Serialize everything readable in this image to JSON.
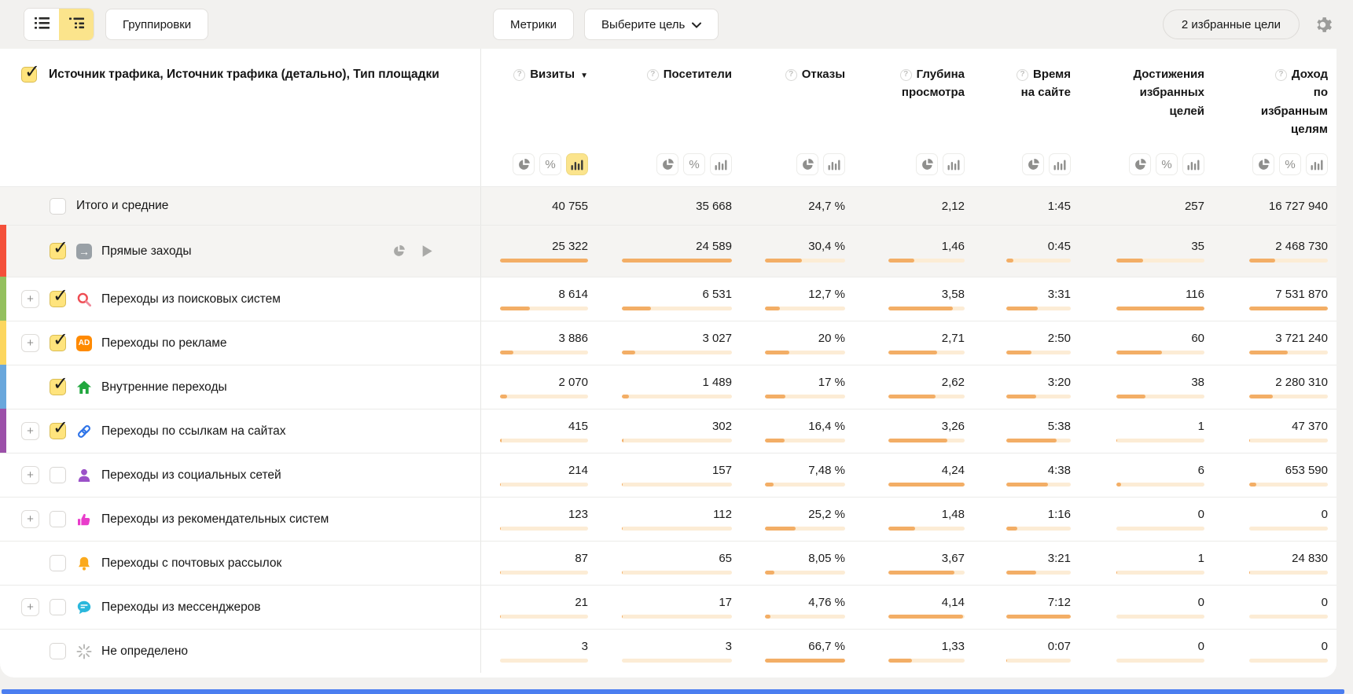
{
  "toolbar": {
    "groupings": "Группировки",
    "metrics": "Метрики",
    "goal_select": "Выберите цель",
    "favorite_goals": "2 избранные цели",
    "icons": [
      "list-view-icon",
      "tree-view-icon",
      "chevron-down-icon",
      "gear-icon"
    ]
  },
  "table": {
    "dimension_header": "Источник трафика, Источник трафика (детально), Тип площадки",
    "columns": [
      {
        "id": "visits",
        "label": "Визиты",
        "help": true,
        "sort": "desc",
        "toggles": [
          "pie-chart-icon",
          "percent-icon",
          "bar-chart-icon"
        ],
        "active": "bar-chart-icon"
      },
      {
        "id": "visitors",
        "label": "Посетители",
        "help": true,
        "sort": null,
        "toggles": [
          "pie-chart-icon",
          "percent-icon",
          "bar-chart-icon"
        ],
        "active": null
      },
      {
        "id": "bounce",
        "label": "Отказы",
        "help": true,
        "sort": null,
        "toggles": [
          "pie-chart-icon",
          "bar-chart-icon"
        ],
        "active": null
      },
      {
        "id": "depth",
        "label": "Глубина\nпросмотра",
        "help": true,
        "sort": null,
        "toggles": [
          "pie-chart-icon",
          "bar-chart-icon"
        ],
        "active": null
      },
      {
        "id": "time",
        "label": "Время\nна сайте",
        "help": true,
        "sort": null,
        "toggles": [
          "pie-chart-icon",
          "bar-chart-icon"
        ],
        "active": null
      },
      {
        "id": "goals",
        "label": "Достижения\nизбранных\nцелей",
        "help": false,
        "sort": null,
        "toggles": [
          "pie-chart-icon",
          "percent-icon",
          "bar-chart-icon"
        ],
        "active": null
      },
      {
        "id": "revenue",
        "label": "Доход\nпо\nизбранным\nцелям",
        "help": true,
        "sort": null,
        "toggles": [
          "pie-chart-icon",
          "percent-icon",
          "bar-chart-icon"
        ],
        "active": null
      }
    ],
    "rows": [
      {
        "id": "totals",
        "label": "Итого и средние",
        "total": true,
        "checked": false,
        "expander": false,
        "icon": null,
        "stripe": null,
        "values": [
          "40 755",
          "35 668",
          "24,7 %",
          "2,12",
          "1:45",
          "257",
          "16 727 940"
        ],
        "bars": null
      },
      {
        "id": "direct",
        "label": "Прямые заходы",
        "total": false,
        "checked": true,
        "expander": false,
        "icon": "direct-traffic-icon",
        "stripe": "#f4503a",
        "highlight": true,
        "actions": [
          "pie-chart-icon",
          "play-icon"
        ],
        "values": [
          "25 322",
          "24 589",
          "30,4 %",
          "1,46",
          "0:45",
          "35",
          "2 468 730"
        ],
        "bars": [
          100,
          100,
          45.6,
          34.4,
          10.4,
          30.2,
          32.8
        ]
      },
      {
        "id": "search",
        "label": "Переходы из поисковых систем",
        "total": false,
        "checked": true,
        "expander": true,
        "icon": "search-icon",
        "stripe": "#94c05e",
        "values": [
          "8 614",
          "6 531",
          "12,7 %",
          "3,58",
          "3:31",
          "116",
          "7 531 870"
        ],
        "bars": [
          34,
          26.6,
          19,
          84.4,
          48.8,
          100,
          100
        ]
      },
      {
        "id": "ads",
        "label": "Переходы по рекламе",
        "total": false,
        "checked": true,
        "expander": true,
        "icon": "ad-icon",
        "stripe": "#fcd65e",
        "values": [
          "3 886",
          "3 027",
          "20 %",
          "2,71",
          "2:50",
          "60",
          "3 721 240"
        ],
        "bars": [
          15.3,
          12.3,
          30,
          63.9,
          39.4,
          51.7,
          49.4
        ]
      },
      {
        "id": "internal",
        "label": "Внутренние переходы",
        "total": false,
        "checked": true,
        "expander": false,
        "icon": "home-icon",
        "stripe": "#69a7dc",
        "values": [
          "2 070",
          "1 489",
          "17 %",
          "2,62",
          "3:20",
          "38",
          "2 280 310"
        ],
        "bars": [
          8.2,
          6.1,
          25.5,
          61.8,
          46.3,
          32.8,
          30.3
        ]
      },
      {
        "id": "links",
        "label": "Переходы по ссылкам на сайтах",
        "total": false,
        "checked": true,
        "expander": true,
        "icon": "link-icon",
        "stripe": "#9c50a9",
        "values": [
          "415",
          "302",
          "16,4 %",
          "3,26",
          "5:38",
          "1",
          "47 370"
        ],
        "bars": [
          1.6,
          1.2,
          24.6,
          76.9,
          78.2,
          0.9,
          0.6
        ]
      },
      {
        "id": "social",
        "label": "Переходы из социальных сетей",
        "total": false,
        "checked": false,
        "expander": true,
        "icon": "social-icon",
        "stripe": null,
        "values": [
          "214",
          "157",
          "7,48 %",
          "4,24",
          "4:38",
          "6",
          "653 590"
        ],
        "bars": [
          0.9,
          0.6,
          11.2,
          100,
          64.4,
          5.2,
          8.7
        ]
      },
      {
        "id": "recommend",
        "label": "Переходы из рекомендательных систем",
        "total": false,
        "checked": false,
        "expander": true,
        "icon": "thumbs-up-icon",
        "stripe": null,
        "values": [
          "123",
          "112",
          "25,2 %",
          "1,48",
          "1:16",
          "0",
          "0"
        ],
        "bars": [
          0.5,
          0.5,
          37.8,
          34.9,
          17.6,
          0,
          0
        ]
      },
      {
        "id": "email",
        "label": "Переходы с почтовых рассылок",
        "total": false,
        "checked": false,
        "expander": false,
        "icon": "bell-icon",
        "stripe": null,
        "values": [
          "87",
          "65",
          "8,05 %",
          "3,67",
          "3:21",
          "1",
          "24 830"
        ],
        "bars": [
          0.35,
          0.3,
          12.1,
          86.6,
          46.5,
          0.9,
          0.3
        ]
      },
      {
        "id": "messengers",
        "label": "Переходы из мессенджеров",
        "total": false,
        "checked": false,
        "expander": true,
        "icon": "messenger-icon",
        "stripe": null,
        "values": [
          "21",
          "17",
          "4,76 %",
          "4,14",
          "7:12",
          "0",
          "0"
        ],
        "bars": [
          0.1,
          0.1,
          7.1,
          97.6,
          100,
          0,
          0
        ]
      },
      {
        "id": "undefined",
        "label": "Не определено",
        "total": false,
        "checked": false,
        "expander": false,
        "icon": "undefined-spinner-icon",
        "stripe": null,
        "values": [
          "3",
          "3",
          "66,7 %",
          "1,33",
          "0:07",
          "0",
          "0"
        ],
        "bars": [
          0.05,
          0.05,
          100,
          31.4,
          1.6,
          0,
          0
        ]
      }
    ]
  },
  "colors": {
    "accent_yellow": "#fbe48c",
    "bar_fill": "#f3ae66",
    "bar_track": "#fcecd5",
    "stripe_direct": "#f4503a",
    "stripe_search": "#94c05e",
    "stripe_ads": "#fcd65e",
    "stripe_internal": "#69a7dc",
    "stripe_links": "#9c50a9",
    "bottom_bar_blue": "#4b7ef0"
  }
}
